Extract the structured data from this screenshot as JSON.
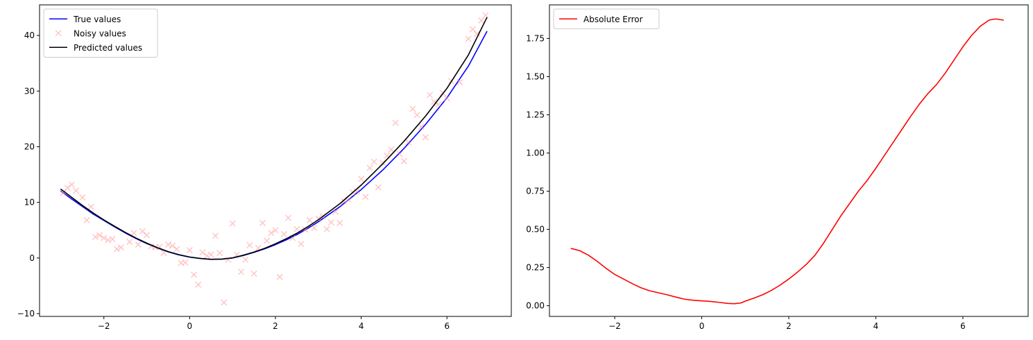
{
  "chart_data": [
    {
      "type": "line",
      "title": "",
      "xlabel": "",
      "ylabel": "",
      "xlim": [
        -3.5,
        7.5
      ],
      "ylim": [
        -10.5,
        45.5
      ],
      "xticks": [
        -2,
        0,
        2,
        4,
        6
      ],
      "yticks": [
        -10,
        0,
        10,
        20,
        30,
        40
      ],
      "x_tick_labels": [
        "−2",
        "0",
        "2",
        "4",
        "6"
      ],
      "y_tick_labels": [
        "−10",
        "0",
        "10",
        "20",
        "30",
        "40"
      ],
      "grid": false,
      "legend_position": "upper left",
      "series": [
        {
          "name": "True values",
          "kind": "line",
          "color": "#0000ff",
          "points": [
            [
              -3.0,
              12.0
            ],
            [
              -2.75,
              10.6
            ],
            [
              -2.5,
              9.25
            ],
            [
              -2.25,
              7.9
            ],
            [
              -2.0,
              6.75
            ],
            [
              -1.75,
              5.6
            ],
            [
              -1.5,
              4.5
            ],
            [
              -1.25,
              3.5
            ],
            [
              -1.0,
              2.6
            ],
            [
              -0.75,
              1.8
            ],
            [
              -0.5,
              1.1
            ],
            [
              -0.25,
              0.55
            ],
            [
              0.0,
              0.15
            ],
            [
              0.25,
              -0.1
            ],
            [
              0.5,
              -0.25
            ],
            [
              0.75,
              -0.2
            ],
            [
              1.0,
              0.0
            ],
            [
              1.25,
              0.45
            ],
            [
              1.5,
              1.0
            ],
            [
              1.75,
              1.65
            ],
            [
              2.0,
              2.4
            ],
            [
              2.25,
              3.25
            ],
            [
              2.5,
              4.2
            ],
            [
              2.75,
              5.3
            ],
            [
              3.0,
              6.5
            ],
            [
              3.5,
              9.2
            ],
            [
              4.0,
              12.3
            ],
            [
              4.5,
              15.8
            ],
            [
              5.0,
              19.7
            ],
            [
              5.5,
              24.0
            ],
            [
              6.0,
              28.8
            ],
            [
              6.5,
              34.5
            ],
            [
              6.93,
              40.7
            ]
          ]
        },
        {
          "name": "Noisy values",
          "kind": "scatter",
          "color": "#ff9999",
          "points": [
            [
              -2.95,
              11.7
            ],
            [
              -2.85,
              12.6
            ],
            [
              -2.75,
              13.2
            ],
            [
              -2.65,
              12.1
            ],
            [
              -2.5,
              10.9
            ],
            [
              -2.4,
              6.8
            ],
            [
              -2.3,
              9.2
            ],
            [
              -2.2,
              3.8
            ],
            [
              -2.1,
              4.1
            ],
            [
              -2.0,
              3.6
            ],
            [
              -1.9,
              3.2
            ],
            [
              -1.8,
              3.4
            ],
            [
              -1.7,
              1.6
            ],
            [
              -1.6,
              1.9
            ],
            [
              -1.4,
              2.9
            ],
            [
              -1.3,
              4.5
            ],
            [
              -1.2,
              2.4
            ],
            [
              -1.1,
              4.8
            ],
            [
              -1.0,
              4.1
            ],
            [
              -0.9,
              2.1
            ],
            [
              -0.8,
              1.9
            ],
            [
              -0.7,
              2.0
            ],
            [
              -0.6,
              0.9
            ],
            [
              -0.5,
              2.4
            ],
            [
              -0.4,
              2.2
            ],
            [
              -0.3,
              1.6
            ],
            [
              -0.2,
              -0.9
            ],
            [
              -0.1,
              -0.8
            ],
            [
              0.0,
              1.4
            ],
            [
              0.1,
              -3.0
            ],
            [
              0.2,
              -4.8
            ],
            [
              0.3,
              1.0
            ],
            [
              0.4,
              0.4
            ],
            [
              0.5,
              0.6
            ],
            [
              0.6,
              4.0
            ],
            [
              0.7,
              0.9
            ],
            [
              0.8,
              -8.0
            ],
            [
              0.9,
              -0.3
            ],
            [
              1.0,
              6.2
            ],
            [
              1.1,
              0.6
            ],
            [
              1.2,
              -2.5
            ],
            [
              1.3,
              -0.3
            ],
            [
              1.4,
              2.3
            ],
            [
              1.5,
              -2.8
            ],
            [
              1.6,
              1.8
            ],
            [
              1.7,
              6.3
            ],
            [
              1.8,
              3.1
            ],
            [
              1.9,
              4.5
            ],
            [
              2.0,
              5.0
            ],
            [
              2.1,
              -3.4
            ],
            [
              2.2,
              4.3
            ],
            [
              2.3,
              7.2
            ],
            [
              2.4,
              3.6
            ],
            [
              2.5,
              5.2
            ],
            [
              2.6,
              2.5
            ],
            [
              2.7,
              5.1
            ],
            [
              2.8,
              6.8
            ],
            [
              2.9,
              5.4
            ],
            [
              3.0,
              7.1
            ],
            [
              3.1,
              7.5
            ],
            [
              3.2,
              5.2
            ],
            [
              3.3,
              6.4
            ],
            [
              3.4,
              8.3
            ],
            [
              3.5,
              6.3
            ],
            [
              3.6,
              10.2
            ],
            [
              3.7,
              10.5
            ],
            [
              3.8,
              11.8
            ],
            [
              3.9,
              12.0
            ],
            [
              4.0,
              14.2
            ],
            [
              4.1,
              11.0
            ],
            [
              4.2,
              16.2
            ],
            [
              4.3,
              17.3
            ],
            [
              4.4,
              12.7
            ],
            [
              4.5,
              17.1
            ],
            [
              4.6,
              18.4
            ],
            [
              4.7,
              19.5
            ],
            [
              4.8,
              24.3
            ],
            [
              4.9,
              18.7
            ],
            [
              5.0,
              17.4
            ],
            [
              5.1,
              20.8
            ],
            [
              5.2,
              26.8
            ],
            [
              5.3,
              25.7
            ],
            [
              5.4,
              23.6
            ],
            [
              5.5,
              21.7
            ],
            [
              5.6,
              29.3
            ],
            [
              5.7,
              28.1
            ],
            [
              5.8,
              27.6
            ],
            [
              5.9,
              29.7
            ],
            [
              6.0,
              28.7
            ],
            [
              6.1,
              31.8
            ],
            [
              6.3,
              31.6
            ],
            [
              6.5,
              39.4
            ],
            [
              6.6,
              41.1
            ],
            [
              6.7,
              40.3
            ],
            [
              6.8,
              42.7
            ],
            [
              6.9,
              43.6
            ]
          ]
        },
        {
          "name": "Predicted values",
          "kind": "line",
          "color": "#000000",
          "points": [
            [
              -3.0,
              12.35
            ],
            [
              -2.75,
              10.9
            ],
            [
              -2.5,
              9.45
            ],
            [
              -2.25,
              8.1
            ],
            [
              -2.0,
              6.85
            ],
            [
              -1.75,
              5.7
            ],
            [
              -1.5,
              4.6
            ],
            [
              -1.25,
              3.58
            ],
            [
              -1.0,
              2.67
            ],
            [
              -0.75,
              1.85
            ],
            [
              -0.5,
              1.15
            ],
            [
              -0.25,
              0.6
            ],
            [
              0.0,
              0.18
            ],
            [
              0.25,
              -0.08
            ],
            [
              0.5,
              -0.23
            ],
            [
              0.75,
              -0.2
            ],
            [
              1.0,
              0.02
            ],
            [
              1.25,
              0.5
            ],
            [
              1.5,
              1.07
            ],
            [
              1.75,
              1.74
            ],
            [
              2.0,
              2.55
            ],
            [
              2.25,
              3.45
            ],
            [
              2.5,
              4.45
            ],
            [
              2.75,
              5.6
            ],
            [
              3.0,
              6.85
            ],
            [
              3.5,
              9.75
            ],
            [
              4.0,
              13.1
            ],
            [
              4.5,
              16.9
            ],
            [
              5.0,
              21.0
            ],
            [
              5.5,
              25.5
            ],
            [
              6.0,
              30.5
            ],
            [
              6.5,
              36.5
            ],
            [
              6.93,
              43.2
            ]
          ]
        }
      ]
    },
    {
      "type": "line",
      "title": "",
      "xlabel": "",
      "ylabel": "",
      "xlim": [
        -3.5,
        7.5
      ],
      "ylim": [
        -0.07,
        1.97
      ],
      "xticks": [
        -2,
        0,
        2,
        4,
        6
      ],
      "yticks": [
        0.0,
        0.25,
        0.5,
        0.75,
        1.0,
        1.25,
        1.5,
        1.75
      ],
      "x_tick_labels": [
        "−2",
        "0",
        "2",
        "4",
        "6"
      ],
      "y_tick_labels": [
        "0.00",
        "0.25",
        "0.50",
        "0.75",
        "1.00",
        "1.25",
        "1.50",
        "1.75"
      ],
      "grid": false,
      "legend_position": "upper left",
      "series": [
        {
          "name": "Absolute Error",
          "kind": "line",
          "color": "#ff0000",
          "points": [
            [
              -3.0,
              0.375
            ],
            [
              -2.8,
              0.36
            ],
            [
              -2.6,
              0.33
            ],
            [
              -2.4,
              0.29
            ],
            [
              -2.2,
              0.245
            ],
            [
              -2.0,
              0.205
            ],
            [
              -1.8,
              0.175
            ],
            [
              -1.6,
              0.145
            ],
            [
              -1.4,
              0.118
            ],
            [
              -1.2,
              0.098
            ],
            [
              -1.0,
              0.085
            ],
            [
              -0.8,
              0.072
            ],
            [
              -0.6,
              0.057
            ],
            [
              -0.4,
              0.043
            ],
            [
              -0.2,
              0.036
            ],
            [
              0.0,
              0.032
            ],
            [
              0.2,
              0.028
            ],
            [
              0.4,
              0.022
            ],
            [
              0.6,
              0.015
            ],
            [
              0.75,
              0.013
            ],
            [
              0.9,
              0.018
            ],
            [
              1.0,
              0.03
            ],
            [
              1.2,
              0.05
            ],
            [
              1.4,
              0.072
            ],
            [
              1.6,
              0.1
            ],
            [
              1.8,
              0.135
            ],
            [
              2.0,
              0.175
            ],
            [
              2.2,
              0.22
            ],
            [
              2.4,
              0.27
            ],
            [
              2.6,
              0.33
            ],
            [
              2.8,
              0.41
            ],
            [
              3.0,
              0.5
            ],
            [
              3.2,
              0.59
            ],
            [
              3.4,
              0.67
            ],
            [
              3.6,
              0.75
            ],
            [
              3.8,
              0.82
            ],
            [
              4.0,
              0.9
            ],
            [
              4.2,
              0.985
            ],
            [
              4.4,
              1.07
            ],
            [
              4.6,
              1.155
            ],
            [
              4.8,
              1.24
            ],
            [
              5.0,
              1.32
            ],
            [
              5.2,
              1.39
            ],
            [
              5.4,
              1.45
            ],
            [
              5.6,
              1.525
            ],
            [
              5.8,
              1.61
            ],
            [
              6.0,
              1.695
            ],
            [
              6.2,
              1.77
            ],
            [
              6.4,
              1.83
            ],
            [
              6.6,
              1.87
            ],
            [
              6.75,
              1.878
            ],
            [
              6.93,
              1.87
            ]
          ]
        }
      ]
    }
  ]
}
